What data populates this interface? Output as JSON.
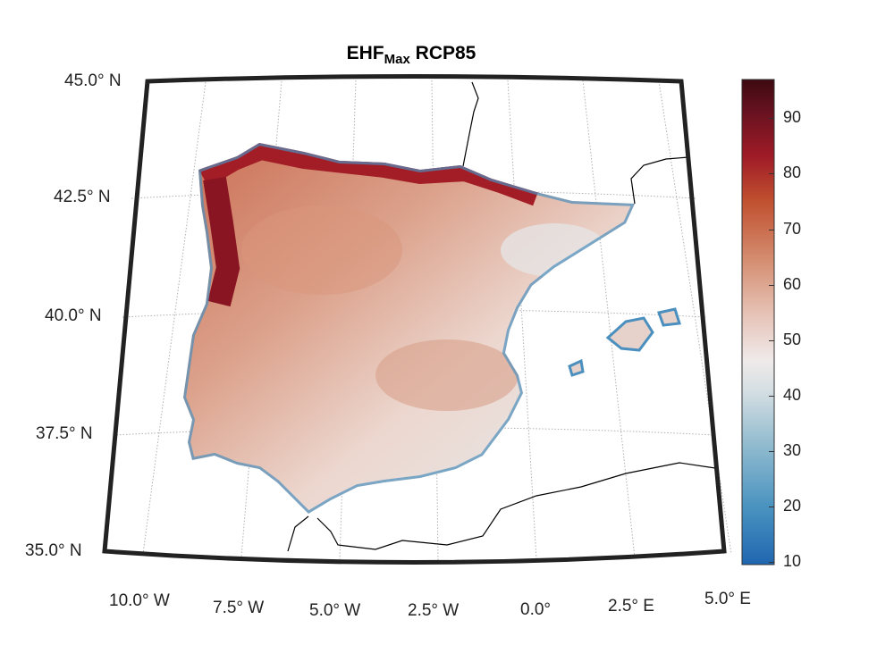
{
  "title": {
    "main": "EHF",
    "subscript": "Max",
    "suffix": "RCP85"
  },
  "lat_labels": [
    "45.0° N",
    "42.5° N",
    "40.0° N",
    "37.5° N",
    "35.0° N"
  ],
  "lon_labels": [
    "10.0° W",
    "7.5° W",
    "5.0° W",
    "2.5° W",
    "0.0°",
    "2.5° E",
    "5.0° E"
  ],
  "colorbar": {
    "ticks": [
      "10",
      "20",
      "30",
      "40",
      "50",
      "60",
      "70",
      "80",
      "90"
    ],
    "range": [
      9.5,
      97
    ],
    "colormap": [
      "#1f66b0",
      "#4a93c0",
      "#93bccf",
      "#d6dfe3",
      "#efeaea",
      "#e6c1b4",
      "#d48c6f",
      "#c0502f",
      "#a01c27",
      "#5a0f1c",
      "#3d0a12"
    ]
  },
  "colors": {
    "frame": "#222222",
    "coast": "#000000",
    "grid": "#b0b0b0"
  }
}
